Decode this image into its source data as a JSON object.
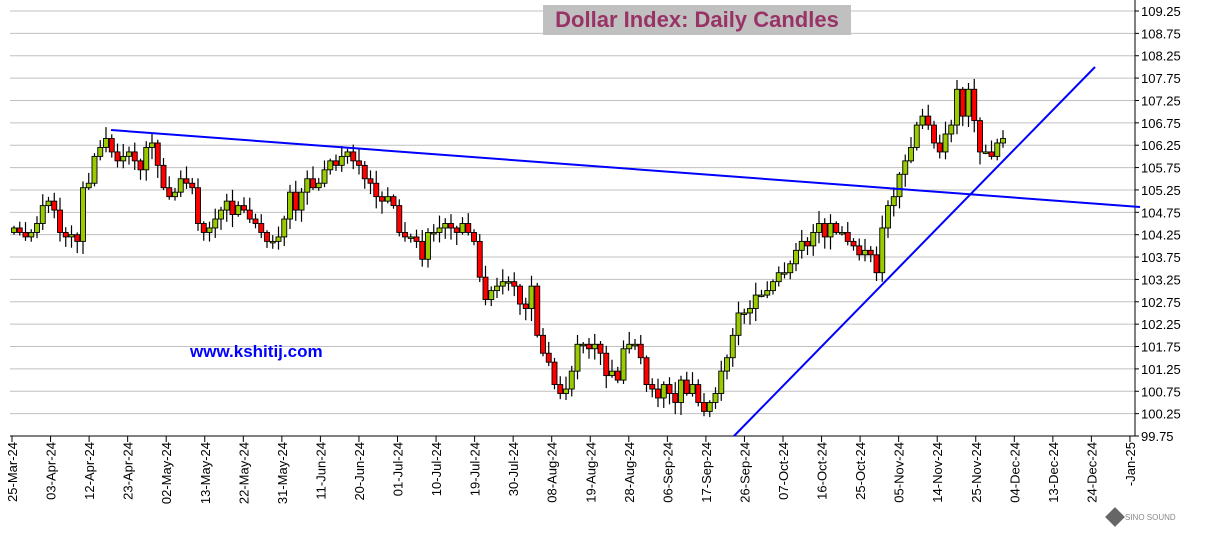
{
  "chart_data": {
    "type": "candlestick",
    "title": "Dollar Index: Daily Candles",
    "watermark_text": "www.kshitij.com",
    "xlabel": "",
    "ylabel": "",
    "ylim": [
      99.75,
      109.25
    ],
    "ytick_step": 0.5,
    "y_ticks": [
      "109.25",
      "108.75",
      "108.25",
      "107.75",
      "107.25",
      "106.75",
      "106.25",
      "105.75",
      "105.25",
      "104.75",
      "104.25",
      "103.75",
      "103.25",
      "102.75",
      "102.25",
      "101.75",
      "101.25",
      "100.75",
      "100.25",
      "99.75"
    ],
    "x_tick_labels": [
      "25-Mar-24",
      "03-Apr-24",
      "12-Apr-24",
      "23-Apr-24",
      "02-May-24",
      "13-May-24",
      "22-May-24",
      "31-May-24",
      "11-Jun-24",
      "20-Jun-24",
      "01-Jul-24",
      "10-Jul-24",
      "19-Jul-24",
      "30-Jul-24",
      "08-Aug-24",
      "19-Aug-24",
      "28-Aug-24",
      "06-Sep-24",
      "17-Sep-24",
      "26-Sep-24",
      "07-Oct-24",
      "16-Oct-24",
      "25-Oct-24",
      "05-Nov-24",
      "14-Nov-24",
      "25-Nov-24",
      "04-Dec-24",
      "13-Dec-24",
      "24-Dec-24",
      "-Jan-25"
    ],
    "first_open": 104.3,
    "close": [
      104.4,
      104.3,
      104.2,
      104.3,
      104.5,
      104.9,
      105.0,
      104.8,
      104.3,
      104.2,
      104.25,
      104.1,
      105.3,
      105.4,
      106.0,
      106.2,
      106.4,
      106.1,
      105.9,
      106.0,
      106.1,
      105.9,
      105.7,
      106.2,
      106.3,
      105.8,
      105.3,
      105.1,
      105.2,
      105.5,
      105.4,
      105.3,
      104.5,
      104.3,
      104.4,
      104.6,
      104.8,
      105.0,
      104.7,
      104.9,
      104.8,
      104.6,
      104.5,
      104.3,
      104.1,
      104.1,
      104.2,
      104.6,
      105.2,
      104.8,
      105.2,
      105.5,
      105.3,
      105.4,
      105.7,
      105.9,
      105.8,
      106.0,
      106.1,
      105.9,
      105.8,
      105.5,
      105.4,
      105.1,
      105.0,
      105.1,
      104.9,
      104.3,
      104.2,
      104.2,
      104.1,
      103.7,
      104.3,
      104.3,
      104.4,
      104.5,
      104.4,
      104.3,
      104.5,
      104.3,
      104.1,
      103.3,
      102.8,
      103.0,
      103.1,
      103.2,
      103.2,
      103.1,
      102.7,
      102.6,
      103.1,
      102.0,
      101.6,
      101.4,
      100.9,
      100.7,
      100.8,
      101.2,
      101.8,
      101.8,
      101.7,
      101.8,
      101.6,
      101.1,
      101.2,
      101.0,
      101.7,
      101.8,
      101.8,
      101.5,
      100.9,
      100.8,
      100.6,
      100.9,
      100.7,
      100.5,
      101.0,
      100.7,
      100.9,
      100.5,
      100.3,
      100.5,
      100.7,
      101.2,
      101.5,
      102.0,
      102.5,
      102.5,
      102.6,
      102.9,
      102.9,
      103.0,
      103.2,
      103.4,
      103.4,
      103.6,
      103.9,
      104.1,
      104.0,
      104.3,
      104.5,
      104.2,
      104.5,
      104.3,
      104.3,
      104.1,
      104.0,
      103.8,
      103.9,
      103.8,
      103.4,
      104.4,
      104.9,
      105.1,
      105.6,
      105.9,
      106.2,
      106.7,
      106.9,
      106.7,
      106.3,
      106.1,
      106.5,
      106.7,
      107.5,
      106.9,
      107.5,
      106.8,
      106.1,
      106.1,
      106.0,
      106.3,
      106.4
    ],
    "trendlines": [
      {
        "name": "resistance",
        "start": [
          106.6,
          "mid-Apr-24"
        ],
        "end": [
          104.85,
          "early-Jan-25"
        ]
      },
      {
        "name": "support",
        "start": [
          99.75,
          "late-Sep-24"
        ],
        "end": [
          108.0,
          "late-Dec-24"
        ]
      }
    ],
    "colors": {
      "up": "#99cc00",
      "down": "#ff0000",
      "trend": "#0000ff",
      "grid": "#c0c0c0",
      "title": "#993366",
      "title_bg": "#c0c0c0"
    },
    "grid": true,
    "legend": "none"
  },
  "logo_text": "SINO SOUND"
}
